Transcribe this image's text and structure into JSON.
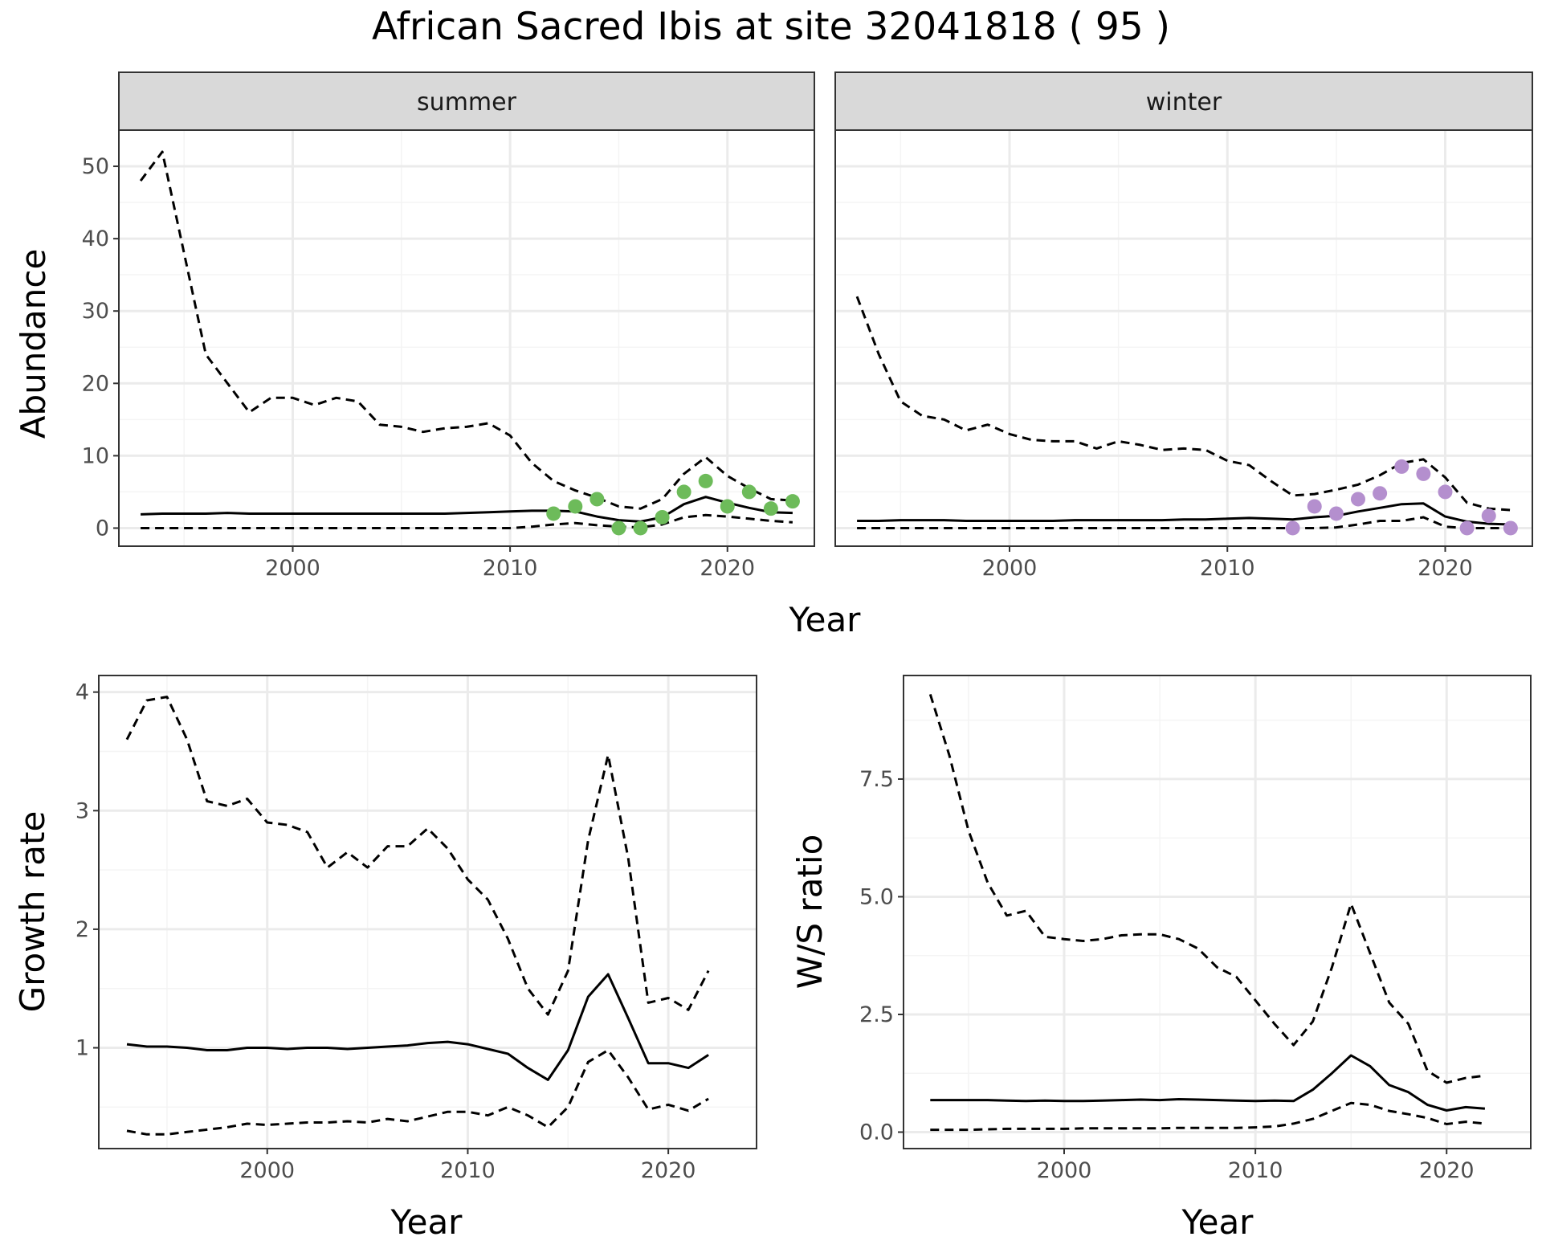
{
  "chart_data": [
    {
      "type": "line",
      "facet": "summer",
      "title": "African Sacred Ibis at site 32041818 ( 95 )",
      "xlabel": "Year",
      "ylabel": "Abundance",
      "xlim": [
        1992,
        2024
      ],
      "ylim": [
        -2.5,
        55
      ],
      "xticks": [
        2000,
        2010,
        2020
      ],
      "yticks": [
        0,
        10,
        20,
        30,
        40,
        50
      ],
      "grid": true,
      "series": [
        {
          "role": "estimate",
          "style": "solid",
          "x": [
            1993,
            1994,
            1995,
            1996,
            1997,
            1998,
            1999,
            2000,
            2001,
            2002,
            2003,
            2004,
            2005,
            2006,
            2007,
            2008,
            2009,
            2010,
            2011,
            2012,
            2013,
            2014,
            2015,
            2016,
            2017,
            2018,
            2019,
            2020,
            2021,
            2022,
            2023
          ],
          "values": [
            1.9,
            2.0,
            2.0,
            2.0,
            2.1,
            2.0,
            2.0,
            2.0,
            2.0,
            2.0,
            2.0,
            2.0,
            2.0,
            2.0,
            2.0,
            2.1,
            2.2,
            2.3,
            2.4,
            2.4,
            2.3,
            1.6,
            1.1,
            0.9,
            1.5,
            3.3,
            4.3,
            3.5,
            2.8,
            2.2,
            2.1
          ]
        },
        {
          "role": "upper",
          "style": "dashed",
          "x": [
            1993,
            1994,
            1995,
            1996,
            1997,
            1998,
            1999,
            2000,
            2001,
            2002,
            2003,
            2004,
            2005,
            2006,
            2007,
            2008,
            2009,
            2010,
            2011,
            2012,
            2013,
            2014,
            2015,
            2016,
            2017,
            2018,
            2019,
            2020,
            2021,
            2022,
            2023
          ],
          "values": [
            48,
            52,
            38,
            24,
            20,
            16,
            18,
            18,
            17,
            18,
            17.5,
            14.3,
            14,
            13.3,
            13.8,
            14,
            14.5,
            12.8,
            9,
            6.5,
            5.2,
            4.2,
            3,
            2.7,
            4,
            7.5,
            9.8,
            7.2,
            5.5,
            4,
            3.8
          ]
        },
        {
          "role": "lower",
          "style": "dashed",
          "x": [
            1993,
            1994,
            1995,
            1996,
            1997,
            1998,
            1999,
            2000,
            2001,
            2002,
            2003,
            2004,
            2005,
            2006,
            2007,
            2008,
            2009,
            2010,
            2011,
            2012,
            2013,
            2014,
            2015,
            2016,
            2017,
            2018,
            2019,
            2020,
            2021,
            2022,
            2023
          ],
          "values": [
            0,
            0,
            0,
            0,
            0,
            0,
            0,
            0,
            0,
            0,
            0,
            0,
            0,
            0,
            0,
            0,
            0,
            0,
            0.2,
            0.5,
            0.7,
            0.4,
            0.2,
            0.1,
            0.5,
            1.5,
            1.8,
            1.6,
            1.3,
            1.0,
            0.8
          ]
        },
        {
          "role": "observed",
          "style": "points",
          "color": "#6dbb5a",
          "x": [
            2012,
            2013,
            2014,
            2015,
            2016,
            2017,
            2018,
            2019,
            2020,
            2021,
            2022,
            2023
          ],
          "values": [
            2,
            3,
            4,
            0,
            0,
            1.5,
            5,
            6.5,
            3,
            5,
            2.7,
            3.7
          ]
        }
      ]
    },
    {
      "type": "line",
      "facet": "winter",
      "xlabel": "Year",
      "xlim": [
        1992,
        2024
      ],
      "ylim": [
        -2.5,
        55
      ],
      "xticks": [
        2000,
        2010,
        2020
      ],
      "grid": true,
      "series": [
        {
          "role": "estimate",
          "style": "solid",
          "x": [
            1993,
            1994,
            1995,
            1996,
            1997,
            1998,
            1999,
            2000,
            2001,
            2002,
            2003,
            2004,
            2005,
            2006,
            2007,
            2008,
            2009,
            2010,
            2011,
            2012,
            2013,
            2014,
            2015,
            2016,
            2017,
            2018,
            2019,
            2020,
            2021,
            2022,
            2023
          ],
          "values": [
            1.0,
            1.0,
            1.1,
            1.1,
            1.1,
            1.0,
            1.0,
            1.0,
            1.0,
            1.0,
            1.1,
            1.1,
            1.1,
            1.1,
            1.1,
            1.2,
            1.2,
            1.3,
            1.4,
            1.3,
            1.2,
            1.5,
            1.7,
            2.3,
            2.8,
            3.3,
            3.4,
            1.6,
            0.9,
            0.6,
            0.5
          ]
        },
        {
          "role": "upper",
          "style": "dashed",
          "x": [
            1993,
            1994,
            1995,
            1996,
            1997,
            1998,
            1999,
            2000,
            2001,
            2002,
            2003,
            2004,
            2005,
            2006,
            2007,
            2008,
            2009,
            2010,
            2011,
            2012,
            2013,
            2014,
            2015,
            2016,
            2017,
            2018,
            2019,
            2020,
            2021,
            2022,
            2023
          ],
          "values": [
            32,
            24,
            17.5,
            15.5,
            15,
            13.5,
            14.3,
            13,
            12.2,
            12,
            12,
            11,
            12,
            11.5,
            10.8,
            11,
            10.8,
            9.3,
            8.7,
            6.5,
            4.5,
            4.7,
            5.3,
            6,
            7.3,
            9,
            9.5,
            7,
            3.5,
            2.7,
            2.5
          ]
        },
        {
          "role": "lower",
          "style": "dashed",
          "x": [
            1993,
            1994,
            1995,
            1996,
            1997,
            1998,
            1999,
            2000,
            2001,
            2002,
            2003,
            2004,
            2005,
            2006,
            2007,
            2008,
            2009,
            2010,
            2011,
            2012,
            2013,
            2014,
            2015,
            2016,
            2017,
            2018,
            2019,
            2020,
            2021,
            2022,
            2023
          ],
          "values": [
            0,
            0,
            0,
            0,
            0,
            0,
            0,
            0,
            0,
            0,
            0,
            0,
            0,
            0,
            0,
            0,
            0,
            0,
            0,
            0,
            0,
            0,
            0.1,
            0.5,
            1.0,
            1.0,
            1.5,
            0.2,
            0,
            0,
            0
          ]
        },
        {
          "role": "observed",
          "style": "points",
          "color": "#b48fce",
          "x": [
            2013,
            2014,
            2015,
            2016,
            2017,
            2018,
            2019,
            2020,
            2021,
            2022,
            2023
          ],
          "values": [
            0,
            3,
            2,
            4,
            4.8,
            8.5,
            7.5,
            5,
            0,
            1.7,
            0
          ]
        }
      ]
    },
    {
      "type": "line",
      "xlabel": "Year",
      "ylabel": "Growth rate",
      "xlim": [
        1991.6,
        2024.4
      ],
      "ylim": [
        0.15,
        4.14
      ],
      "xticks": [
        2000,
        2010,
        2020
      ],
      "yticks": [
        1,
        2,
        3,
        4
      ],
      "grid": true,
      "series": [
        {
          "role": "estimate",
          "style": "solid",
          "x": [
            1993,
            1994,
            1995,
            1996,
            1997,
            1998,
            1999,
            2000,
            2001,
            2002,
            2003,
            2004,
            2005,
            2006,
            2007,
            2008,
            2009,
            2010,
            2011,
            2012,
            2013,
            2014,
            2015,
            2016,
            2017,
            2018,
            2019,
            2020,
            2021,
            2022
          ],
          "values": [
            1.03,
            1.01,
            1.01,
            1.0,
            0.98,
            0.98,
            1.0,
            1.0,
            0.99,
            1.0,
            1.0,
            0.99,
            1.0,
            1.01,
            1.02,
            1.04,
            1.05,
            1.03,
            0.99,
            0.95,
            0.83,
            0.73,
            0.98,
            1.43,
            1.62,
            1.25,
            0.87,
            0.87,
            0.83,
            0.94
          ]
        },
        {
          "role": "upper",
          "style": "dashed",
          "x": [
            1993,
            1994,
            1995,
            1996,
            1997,
            1998,
            1999,
            2000,
            2001,
            2002,
            2003,
            2004,
            2005,
            2006,
            2007,
            2008,
            2009,
            2010,
            2011,
            2012,
            2013,
            2014,
            2015,
            2016,
            2017,
            2018,
            2019,
            2020,
            2021,
            2022
          ],
          "values": [
            3.6,
            3.93,
            3.96,
            3.6,
            3.08,
            3.04,
            3.1,
            2.9,
            2.88,
            2.82,
            2.52,
            2.65,
            2.52,
            2.7,
            2.7,
            2.85,
            2.68,
            2.42,
            2.25,
            1.92,
            1.5,
            1.28,
            1.65,
            2.75,
            3.47,
            2.6,
            1.38,
            1.42,
            1.32,
            1.65
          ]
        },
        {
          "role": "lower",
          "style": "dashed",
          "x": [
            1993,
            1994,
            1995,
            1996,
            1997,
            1998,
            1999,
            2000,
            2001,
            2002,
            2003,
            2004,
            2005,
            2006,
            2007,
            2008,
            2009,
            2010,
            2011,
            2012,
            2013,
            2014,
            2015,
            2016,
            2017,
            2018,
            2019,
            2020,
            2021,
            2022
          ],
          "values": [
            0.3,
            0.27,
            0.27,
            0.29,
            0.31,
            0.33,
            0.36,
            0.35,
            0.36,
            0.37,
            0.37,
            0.38,
            0.37,
            0.4,
            0.38,
            0.42,
            0.46,
            0.46,
            0.43,
            0.5,
            0.43,
            0.33,
            0.5,
            0.88,
            0.98,
            0.75,
            0.48,
            0.52,
            0.47,
            0.57
          ]
        }
      ]
    },
    {
      "type": "line",
      "xlabel": "Year",
      "ylabel": "W/S ratio",
      "xlim": [
        1991.6,
        2024.4
      ],
      "ylim": [
        -0.35,
        9.7
      ],
      "xticks": [
        2000,
        2010,
        2020
      ],
      "ytick_labels": [
        "0.0",
        "2.5",
        "5.0",
        "7.5"
      ],
      "yticks": [
        0,
        2.5,
        5,
        7.5
      ],
      "grid": true,
      "series": [
        {
          "role": "estimate",
          "style": "solid",
          "x": [
            1993,
            1994,
            1995,
            1996,
            1997,
            1998,
            1999,
            2000,
            2001,
            2002,
            2003,
            2004,
            2005,
            2006,
            2007,
            2008,
            2009,
            2010,
            2011,
            2012,
            2013,
            2014,
            2015,
            2016,
            2017,
            2018,
            2019,
            2020,
            2021,
            2022
          ],
          "values": [
            0.68,
            0.68,
            0.68,
            0.68,
            0.67,
            0.66,
            0.67,
            0.66,
            0.66,
            0.67,
            0.68,
            0.69,
            0.68,
            0.7,
            0.69,
            0.68,
            0.67,
            0.66,
            0.67,
            0.66,
            0.9,
            1.25,
            1.63,
            1.4,
            1.0,
            0.85,
            0.58,
            0.46,
            0.53,
            0.5
          ]
        },
        {
          "role": "upper",
          "style": "dashed",
          "x": [
            1993,
            1994,
            1995,
            1996,
            1997,
            1998,
            1999,
            2000,
            2001,
            2002,
            2003,
            2004,
            2005,
            2006,
            2007,
            2008,
            2009,
            2010,
            2011,
            2012,
            2013,
            2014,
            2015,
            2016,
            2017,
            2018,
            2019,
            2020,
            2021,
            2022
          ],
          "values": [
            9.3,
            8.0,
            6.4,
            5.3,
            4.6,
            4.7,
            4.15,
            4.1,
            4.06,
            4.1,
            4.18,
            4.2,
            4.2,
            4.1,
            3.9,
            3.5,
            3.3,
            2.8,
            2.3,
            1.85,
            2.35,
            3.5,
            4.85,
            3.8,
            2.75,
            2.3,
            1.3,
            1.05,
            1.15,
            1.2
          ]
        },
        {
          "role": "lower",
          "style": "dashed",
          "x": [
            1993,
            1994,
            1995,
            1996,
            1997,
            1998,
            1999,
            2000,
            2001,
            2002,
            2003,
            2004,
            2005,
            2006,
            2007,
            2008,
            2009,
            2010,
            2011,
            2012,
            2013,
            2014,
            2015,
            2016,
            2017,
            2018,
            2019,
            2020,
            2021,
            2022
          ],
          "values": [
            0.05,
            0.05,
            0.05,
            0.06,
            0.07,
            0.07,
            0.07,
            0.07,
            0.08,
            0.08,
            0.08,
            0.08,
            0.08,
            0.09,
            0.09,
            0.09,
            0.09,
            0.1,
            0.12,
            0.18,
            0.28,
            0.45,
            0.62,
            0.58,
            0.45,
            0.38,
            0.3,
            0.17,
            0.22,
            0.18
          ]
        }
      ]
    }
  ],
  "facet_strips": {
    "summer": "summer",
    "winter": "winter"
  },
  "titles": {
    "main": "African Sacred Ibis at site 32041818 ( 95 )",
    "top_xlabel": "Year",
    "top_ylabel": "Abundance",
    "bl_xlabel": "Year",
    "bl_ylabel": "Growth rate",
    "br_xlabel": "Year",
    "br_ylabel": "W/S ratio"
  },
  "colors": {
    "summer_points": "#6dbb5a",
    "winter_points": "#b48fce",
    "line": "#000000",
    "grid_major": "#ebebeb",
    "grid_minor": "#f4f4f4",
    "strip_fill": "#d9d9d9",
    "axis_text": "#4d4d4d"
  }
}
